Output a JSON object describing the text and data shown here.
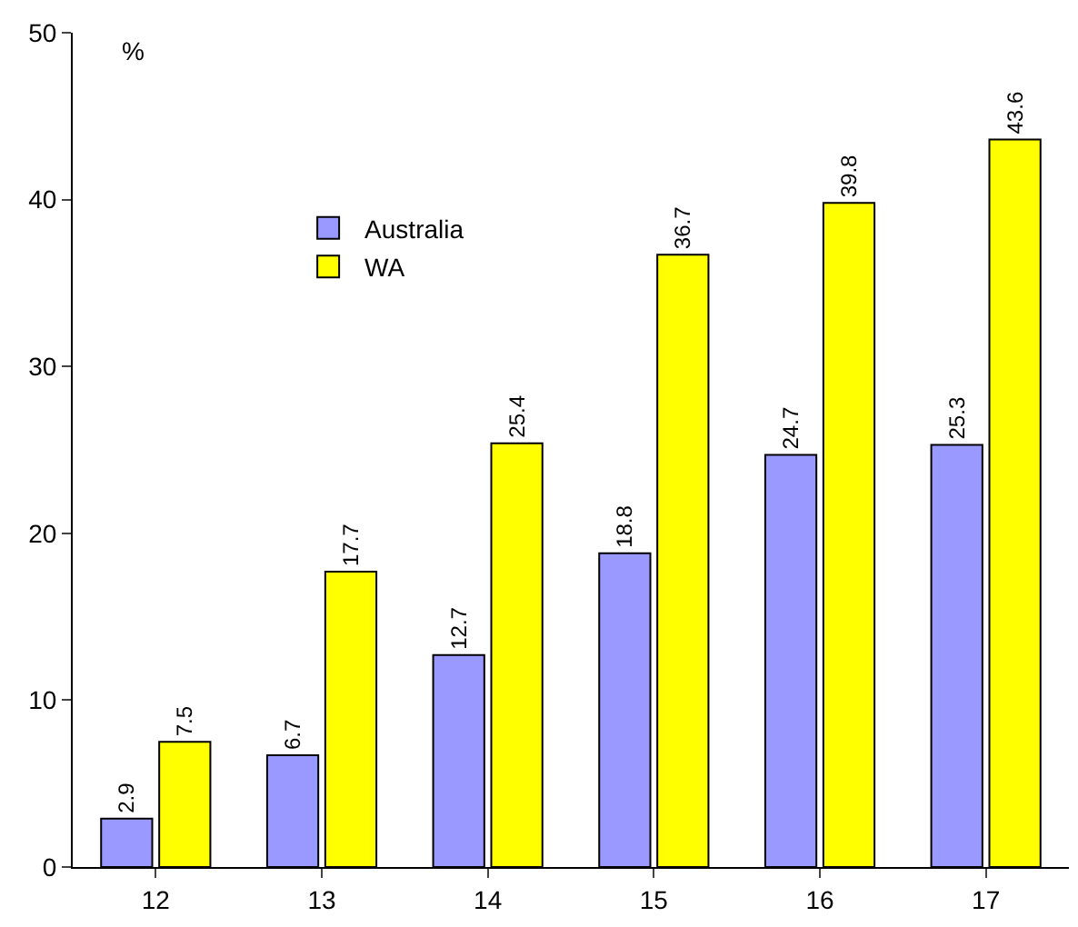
{
  "chart_data": {
    "type": "bar",
    "ylabel": "%",
    "categories": [
      "12",
      "13",
      "14",
      "15",
      "16",
      "17"
    ],
    "series": [
      {
        "name": "Australia",
        "color": "#9999ff",
        "values": [
          2.9,
          6.7,
          12.7,
          18.8,
          24.7,
          25.3
        ]
      },
      {
        "name": "WA",
        "color": "#ffff00",
        "values": [
          7.5,
          17.7,
          25.4,
          36.7,
          39.8,
          43.6
        ]
      }
    ],
    "ylim": [
      0,
      50
    ],
    "yticks": [
      0,
      10,
      20,
      30,
      40,
      50
    ],
    "grid": false,
    "legend": "top left",
    "data_labels": true
  }
}
